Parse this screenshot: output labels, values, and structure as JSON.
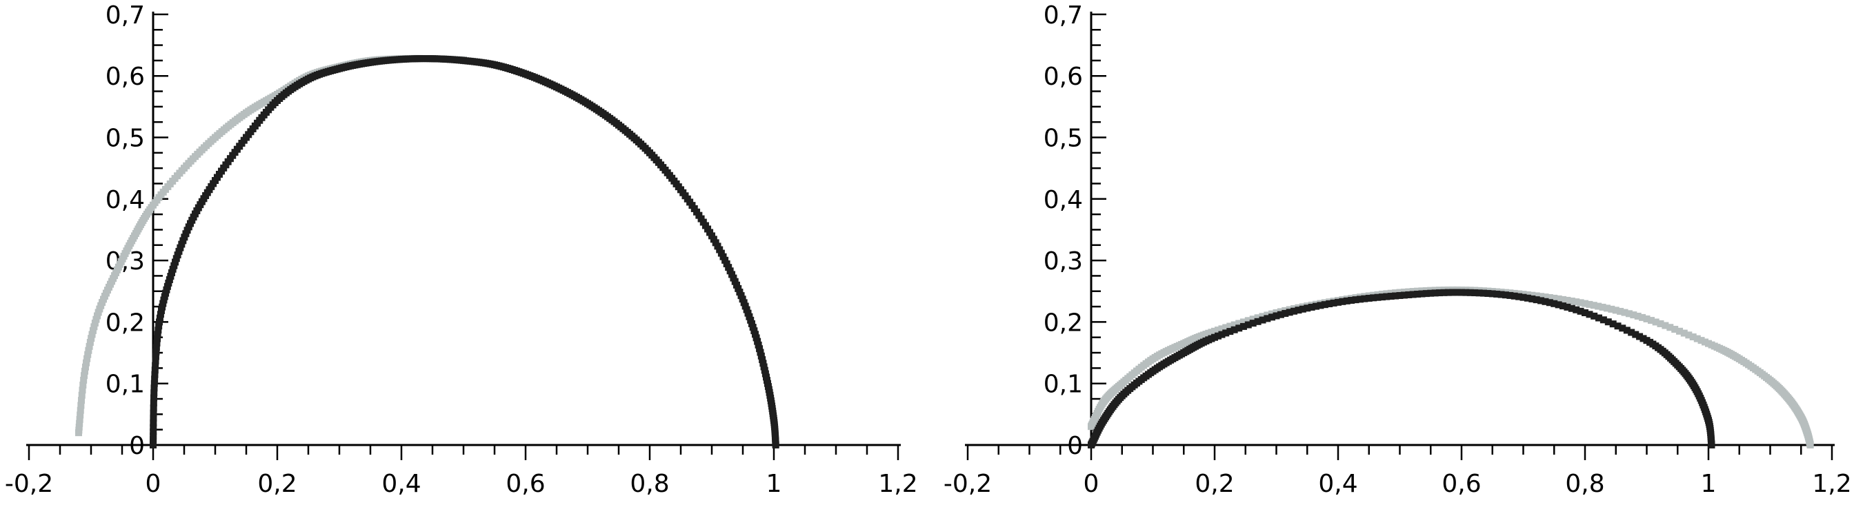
{
  "chart_data": [
    {
      "type": "scatter",
      "title": "",
      "xlabel": "",
      "ylabel": "",
      "xlim": [
        -0.2,
        1.2
      ],
      "ylim": [
        0,
        0.7
      ],
      "grid": false,
      "legend": "none",
      "x_tick_labels": [
        "-0,2",
        "0",
        "0,2",
        "0,4",
        "0,6",
        "0,8",
        "1",
        "1,2"
      ],
      "x_tick_values": [
        -0.2,
        0,
        0.2,
        0.4,
        0.6,
        0.8,
        1.0,
        1.2
      ],
      "y_tick_labels": [
        "0",
        "0,1",
        "0,2",
        "0,3",
        "0,4",
        "0,5",
        "0,6",
        "0,7"
      ],
      "y_tick_values": [
        0,
        0.1,
        0.2,
        0.3,
        0.4,
        0.5,
        0.6,
        0.7
      ],
      "series": [
        {
          "color": "#b7bebe",
          "x": [
            -0.12,
            -0.11,
            -0.09,
            -0.06,
            -0.03,
            0.0,
            0.05,
            0.1,
            0.15,
            0.2,
            0.25,
            0.3,
            0.35,
            0.4,
            0.45,
            0.5
          ],
          "y": [
            0.02,
            0.12,
            0.21,
            0.28,
            0.34,
            0.39,
            0.45,
            0.5,
            0.54,
            0.57,
            0.6,
            0.615,
            0.625,
            0.628,
            0.628,
            0.626
          ]
        },
        {
          "color": "#1e1e1e",
          "x": [
            0.0,
            0.002,
            0.01,
            0.03,
            0.06,
            0.1,
            0.15,
            0.2,
            0.25,
            0.3,
            0.35,
            0.4,
            0.45,
            0.5,
            0.55,
            0.6,
            0.65,
            0.7,
            0.75,
            0.8,
            0.85,
            0.9,
            0.94,
            0.97,
            0.99,
            1.0,
            1.003
          ],
          "y": [
            0.0,
            0.1,
            0.2,
            0.28,
            0.36,
            0.43,
            0.5,
            0.56,
            0.595,
            0.612,
            0.622,
            0.627,
            0.628,
            0.625,
            0.618,
            0.603,
            0.582,
            0.555,
            0.52,
            0.475,
            0.415,
            0.34,
            0.26,
            0.18,
            0.1,
            0.04,
            0.0
          ]
        }
      ]
    },
    {
      "type": "scatter",
      "title": "",
      "xlabel": "",
      "ylabel": "",
      "xlim": [
        -0.2,
        1.2
      ],
      "ylim": [
        0,
        0.7
      ],
      "grid": false,
      "legend": "none",
      "x_tick_labels": [
        "-0,2",
        "0",
        "0,2",
        "0,4",
        "0,6",
        "0,8",
        "1",
        "1,2"
      ],
      "x_tick_values": [
        -0.2,
        0,
        0.2,
        0.4,
        0.6,
        0.8,
        1.0,
        1.2
      ],
      "y_tick_labels": [
        "0",
        "0,1",
        "0,2",
        "0,3",
        "0,4",
        "0,5",
        "0,6",
        "0,7"
      ],
      "y_tick_values": [
        0,
        0.1,
        0.2,
        0.3,
        0.4,
        0.5,
        0.6,
        0.7
      ],
      "series": [
        {
          "color": "#b7bebe",
          "x": [
            0.0,
            0.02,
            0.05,
            0.1,
            0.15,
            0.2,
            0.3,
            0.4,
            0.5,
            0.6,
            0.7,
            0.8,
            0.9,
            1.0,
            1.05,
            1.1,
            1.13,
            1.15,
            1.16,
            1.165
          ],
          "y": [
            0.03,
            0.07,
            0.1,
            0.14,
            0.165,
            0.185,
            0.215,
            0.235,
            0.248,
            0.252,
            0.245,
            0.23,
            0.205,
            0.165,
            0.14,
            0.105,
            0.075,
            0.045,
            0.02,
            0.0
          ]
        },
        {
          "color": "#1e1e1e",
          "x": [
            0.0,
            0.02,
            0.05,
            0.1,
            0.15,
            0.2,
            0.3,
            0.4,
            0.5,
            0.6,
            0.7,
            0.8,
            0.9,
            0.95,
            0.98,
            1.0,
            1.005
          ],
          "y": [
            0.0,
            0.04,
            0.08,
            0.12,
            0.15,
            0.175,
            0.21,
            0.232,
            0.243,
            0.248,
            0.24,
            0.215,
            0.17,
            0.13,
            0.09,
            0.04,
            0.0
          ]
        }
      ]
    }
  ]
}
